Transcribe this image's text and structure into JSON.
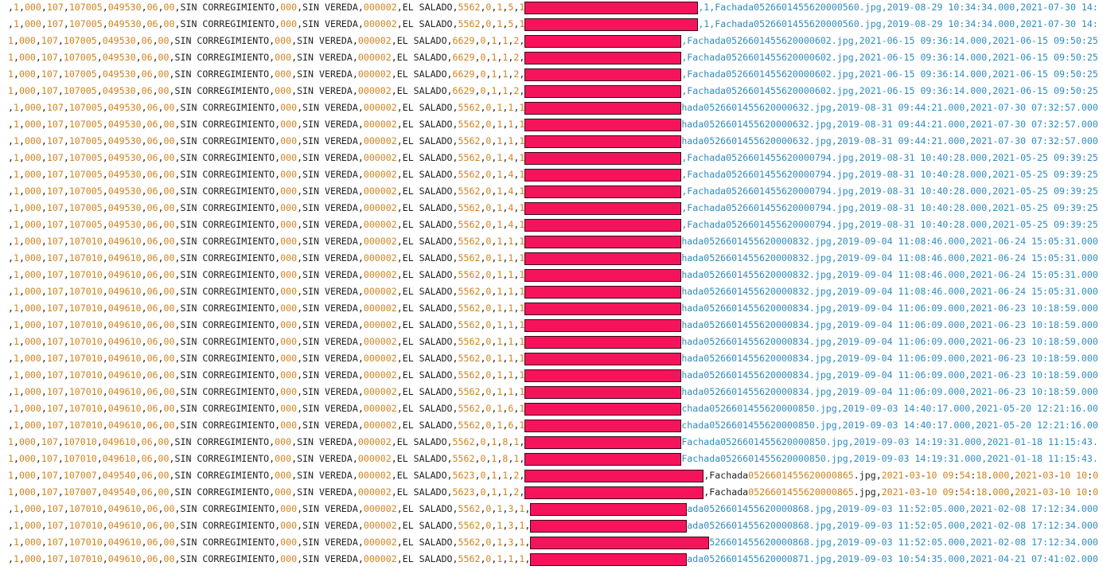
{
  "editor": {
    "lines": [
      {
        "left": ",1,000,107,107005,049530,06,00,SIN CORREGIMIENTO,000,SIN VEREDA,000002,EL SALADO,5562,0,1,5,1",
        "right": ",1,Fachada0526601455620000560.jpg,2019-08-29 10:34:34.000,2021-07-30 14:",
        "right_color": "#2f8cc0"
      },
      {
        "left": ",1,000,107,107005,049530,06,00,SIN CORREGIMIENTO,000,SIN VEREDA,000002,EL SALADO,5562,0,1,5,1",
        "right": ",1,Fachada0526601455620000560.jpg,2019-08-29 10:34:34.000,2021-07-30 14:",
        "right_color": "#2f8cc0"
      },
      {
        "left": "1,000,107,107005,049530,06,00,SIN CORREGIMIENTO,000,SIN VEREDA,000002,EL SALADO,6629,0,1,1,2,",
        "right": ",Fachada0526601455620000602.jpg,2021-06-15 09:36:14.000,2021-06-15 09:50:25",
        "right_color": "#2f8cc0"
      },
      {
        "left": "1,000,107,107005,049530,06,00,SIN CORREGIMIENTO,000,SIN VEREDA,000002,EL SALADO,6629,0,1,1,2,",
        "right": ",Fachada0526601455620000602.jpg,2021-06-15 09:36:14.000,2021-06-15 09:50:25",
        "right_color": "#2f8cc0"
      },
      {
        "left": "1,000,107,107005,049530,06,00,SIN CORREGIMIENTO,000,SIN VEREDA,000002,EL SALADO,6629,0,1,1,2,",
        "right": ",Fachada0526601455620000602.jpg,2021-06-15 09:36:14.000,2021-06-15 09:50:25",
        "right_color": "#2f8cc0"
      },
      {
        "left": "1,000,107,107005,049530,06,00,SIN CORREGIMIENTO,000,SIN VEREDA,000002,EL SALADO,6629,0,1,1,2,",
        "right": ",Fachada0526601455620000602.jpg,2021-06-15 09:36:14.000,2021-06-15 09:50:25",
        "right_color": "#2f8cc0"
      },
      {
        "left": ",1,000,107,107005,049530,06,00,SIN CORREGIMIENTO,000,SIN VEREDA,000002,EL SALADO,5562,0,1,1,1",
        "right": "hada0526601455620000632.jpg,2019-08-31 09:44:21.000,2021-07-30 07:32:57.000",
        "right_color": "#2f8cc0"
      },
      {
        "left": ",1,000,107,107005,049530,06,00,SIN CORREGIMIENTO,000,SIN VEREDA,000002,EL SALADO,5562,0,1,1,1",
        "right": "hada0526601455620000632.jpg,2019-08-31 09:44:21.000,2021-07-30 07:32:57.000",
        "right_color": "#2f8cc0"
      },
      {
        "left": ",1,000,107,107005,049530,06,00,SIN CORREGIMIENTO,000,SIN VEREDA,000002,EL SALADO,5562,0,1,1,1",
        "right": "hada0526601455620000632.jpg,2019-08-31 09:44:21.000,2021-07-30 07:32:57.000",
        "right_color": "#2f8cc0"
      },
      {
        "left": ",1,000,107,107005,049530,06,00,SIN CORREGIMIENTO,000,SIN VEREDA,000002,EL SALADO,5562,0,1,4,1",
        "right": ",Fachada0526601455620000794.jpg,2019-08-31 10:40:28.000,2021-05-25 09:39:25",
        "right_color": "#2f8cc0"
      },
      {
        "left": ",1,000,107,107005,049530,06,00,SIN CORREGIMIENTO,000,SIN VEREDA,000002,EL SALADO,5562,0,1,4,1",
        "right": ",Fachada0526601455620000794.jpg,2019-08-31 10:40:28.000,2021-05-25 09:39:25",
        "right_color": "#2f8cc0"
      },
      {
        "left": ",1,000,107,107005,049530,06,00,SIN CORREGIMIENTO,000,SIN VEREDA,000002,EL SALADO,5562,0,1,4,1",
        "right": ",Fachada0526601455620000794.jpg,2019-08-31 10:40:28.000,2021-05-25 09:39:25",
        "right_color": "#2f8cc0"
      },
      {
        "left": ",1,000,107,107005,049530,06,00,SIN CORREGIMIENTO,000,SIN VEREDA,000002,EL SALADO,5562,0,1,4,1",
        "right": ",Fachada0526601455620000794.jpg,2019-08-31 10:40:28.000,2021-05-25 09:39:25",
        "right_color": "#2f8cc0"
      },
      {
        "left": ",1,000,107,107005,049530,06,00,SIN CORREGIMIENTO,000,SIN VEREDA,000002,EL SALADO,5562,0,1,4,1",
        "right": ",Fachada0526601455620000794.jpg,2019-08-31 10:40:28.000,2021-05-25 09:39:25",
        "right_color": "#2f8cc0"
      },
      {
        "left": ",1,000,107,107010,049610,06,00,SIN CORREGIMIENTO,000,SIN VEREDA,000002,EL SALADO,5562,0,1,1,1",
        "right": "hada0526601455620000832.jpg,2019-09-04 11:08:46.000,2021-06-24 15:05:31.000",
        "right_color": "#2f8cc0"
      },
      {
        "left": ",1,000,107,107010,049610,06,00,SIN CORREGIMIENTO,000,SIN VEREDA,000002,EL SALADO,5562,0,1,1,1",
        "right": "hada0526601455620000832.jpg,2019-09-04 11:08:46.000,2021-06-24 15:05:31.000",
        "right_color": "#2f8cc0"
      },
      {
        "left": ",1,000,107,107010,049610,06,00,SIN CORREGIMIENTO,000,SIN VEREDA,000002,EL SALADO,5562,0,1,1,1",
        "right": "hada0526601455620000832.jpg,2019-09-04 11:08:46.000,2021-06-24 15:05:31.000",
        "right_color": "#2f8cc0"
      },
      {
        "left": ",1,000,107,107010,049610,06,00,SIN CORREGIMIENTO,000,SIN VEREDA,000002,EL SALADO,5562,0,1,1,1",
        "right": "hada0526601455620000832.jpg,2019-09-04 11:08:46.000,2021-06-24 15:05:31.000",
        "right_color": "#2f8cc0"
      },
      {
        "left": ",1,000,107,107010,049610,06,00,SIN CORREGIMIENTO,000,SIN VEREDA,000002,EL SALADO,5562,0,1,1,1",
        "right": "hada0526601455620000834.jpg,2019-09-04 11:06:09.000,2021-06-23 10:18:59.000",
        "right_color": "#2f8cc0"
      },
      {
        "left": ",1,000,107,107010,049610,06,00,SIN CORREGIMIENTO,000,SIN VEREDA,000002,EL SALADO,5562,0,1,1,1",
        "right": "hada0526601455620000834.jpg,2019-09-04 11:06:09.000,2021-06-23 10:18:59.000",
        "right_color": "#2f8cc0"
      },
      {
        "left": ",1,000,107,107010,049610,06,00,SIN CORREGIMIENTO,000,SIN VEREDA,000002,EL SALADO,5562,0,1,1,1",
        "right": "hada0526601455620000834.jpg,2019-09-04 11:06:09.000,2021-06-23 10:18:59.000",
        "right_color": "#2f8cc0"
      },
      {
        "left": ",1,000,107,107010,049610,06,00,SIN CORREGIMIENTO,000,SIN VEREDA,000002,EL SALADO,5562,0,1,1,1",
        "right": "hada0526601455620000834.jpg,2019-09-04 11:06:09.000,2021-06-23 10:18:59.000",
        "right_color": "#2f8cc0"
      },
      {
        "left": ",1,000,107,107010,049610,06,00,SIN CORREGIMIENTO,000,SIN VEREDA,000002,EL SALADO,5562,0,1,1,1",
        "right": "hada0526601455620000834.jpg,2019-09-04 11:06:09.000,2021-06-23 10:18:59.000",
        "right_color": "#2f8cc0"
      },
      {
        "left": ",1,000,107,107010,049610,06,00,SIN CORREGIMIENTO,000,SIN VEREDA,000002,EL SALADO,5562,0,1,1,1",
        "right": "hada0526601455620000834.jpg,2019-09-04 11:06:09.000,2021-06-23 10:18:59.000",
        "right_color": "#2f8cc0"
      },
      {
        "left": ",1,000,107,107010,049610,06,00,SIN CORREGIMIENTO,000,SIN VEREDA,000002,EL SALADO,5562,0,1,6,1",
        "right": "chada0526601455620000850.jpg,2019-09-03 14:40:17.000,2021-05-20 12:21:16.00",
        "right_color": "#2f8cc0"
      },
      {
        "left": ",1,000,107,107010,049610,06,00,SIN CORREGIMIENTO,000,SIN VEREDA,000002,EL SALADO,5562,0,1,6,1",
        "right": "chada0526601455620000850.jpg,2019-09-03 14:40:17.000,2021-05-20 12:21:16.00",
        "right_color": "#2f8cc0"
      },
      {
        "left": "1,000,107,107010,049610,06,00,SIN CORREGIMIENTO,000,SIN VEREDA,000002,EL SALADO,5562,0,1,8,1,",
        "right": "Fachada0526601455620000850.jpg,2019-09-03 14:19:31.000,2021-01-18 11:15:43.",
        "right_color": "#2f8cc0"
      },
      {
        "left": "1,000,107,107010,049610,06,00,SIN CORREGIMIENTO,000,SIN VEREDA,000002,EL SALADO,5562,0,1,8,1,",
        "right": "Fachada0526601455620000850.jpg,2019-09-03 14:19:31.000,2021-01-18 11:15:43.",
        "right_color": "#2f8cc0"
      },
      {
        "left": "1,000,107,107007,049540,06,00,SIN CORREGIMIENTO,000,SIN VEREDA,000002,EL SALADO,5623,0,1,1,2,",
        "right": ",Fachada0526601455620000865.jpg,2021-03-10 09:54:18.000,2021-03-10 10:0"
      },
      {
        "left": "1,000,107,107007,049540,06,00,SIN CORREGIMIENTO,000,SIN VEREDA,000002,EL SALADO,5623,0,1,1,2,",
        "right": ",Fachada0526601455620000865.jpg,2021-03-10 09:54:18.000,2021-03-10 10:0"
      },
      {
        "left": ",1,000,107,107010,049610,06,00,SIN CORREGIMIENTO,000,SIN VEREDA,000002,EL SALADO,5562,0,1,3,1,",
        "right": "ada0526601455620000868.jpg,2019-09-03 11:52:05.000,2021-02-08 17:12:34.000",
        "right_color": "#2f8cc0"
      },
      {
        "left": ",1,000,107,107010,049610,06,00,SIN CORREGIMIENTO,000,SIN VEREDA,000002,EL SALADO,5562,0,1,3,1,",
        "right": "ada0526601455620000868.jpg,2019-09-03 11:52:05.000,2021-02-08 17:12:34.000",
        "right_color": "#2f8cc0"
      },
      {
        "left": ",1,000,107,107010,049610,06,00,SIN CORREGIMIENTO,000,SIN VEREDA,000002,EL SALADO,5562,0,1,3,1,",
        "right": "526601455620000868.jpg,2019-09-03 11:52:05.000,2021-02-08 17:12:34.000",
        "right_color": "#2f8cc0"
      },
      {
        "left": ",1,000,107,107010,049610,06,00,SIN CORREGIMIENTO,000,SIN VEREDA,000002,EL SALADO,5562,0,1,1,1,",
        "right": "ada0526601455620000871.jpg,2019-09-03 10:54:35.000,2021-04-21 07:41:02.000",
        "right_color": "#2f8cc0"
      }
    ]
  }
}
